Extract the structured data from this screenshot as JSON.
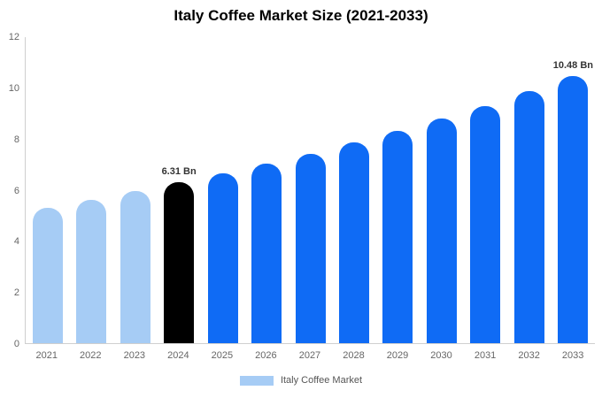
{
  "title": "Italy Coffee Market Size (2021-2033)",
  "legend": {
    "label": "Italy Coffee Market",
    "swatch_color": "#a6ccf5"
  },
  "colors": {
    "historical": "#a6ccf5",
    "base_year": "#000000",
    "forecast": "#0f6bf5",
    "axis_line": "#cfcfcf",
    "tick_text": "#666666"
  },
  "chart_data": {
    "type": "bar",
    "title": "Italy Coffee Market Size (2021-2033)",
    "categories": [
      "2021",
      "2022",
      "2023",
      "2024",
      "2025",
      "2026",
      "2027",
      "2028",
      "2029",
      "2030",
      "2031",
      "2032",
      "2033"
    ],
    "values": [
      5.3,
      5.62,
      5.95,
      6.31,
      6.65,
      7.03,
      7.43,
      7.88,
      8.32,
      8.8,
      9.3,
      9.9,
      10.48
    ],
    "bar_colors": [
      "#a6ccf5",
      "#a6ccf5",
      "#a6ccf5",
      "#000000",
      "#0f6bf5",
      "#0f6bf5",
      "#0f6bf5",
      "#0f6bf5",
      "#0f6bf5",
      "#0f6bf5",
      "#0f6bf5",
      "#0f6bf5",
      "#0f6bf5"
    ],
    "annotations": [
      {
        "index": 3,
        "text": "6.31 Bn"
      },
      {
        "index": 12,
        "text": "10.48 Bn"
      }
    ],
    "xlabel": "",
    "ylabel": "",
    "ylim": [
      0,
      12
    ],
    "yticks": [
      0,
      2,
      4,
      6,
      8,
      10,
      12
    ],
    "grid": false,
    "legend_position": "bottom",
    "unit": "Bn"
  }
}
